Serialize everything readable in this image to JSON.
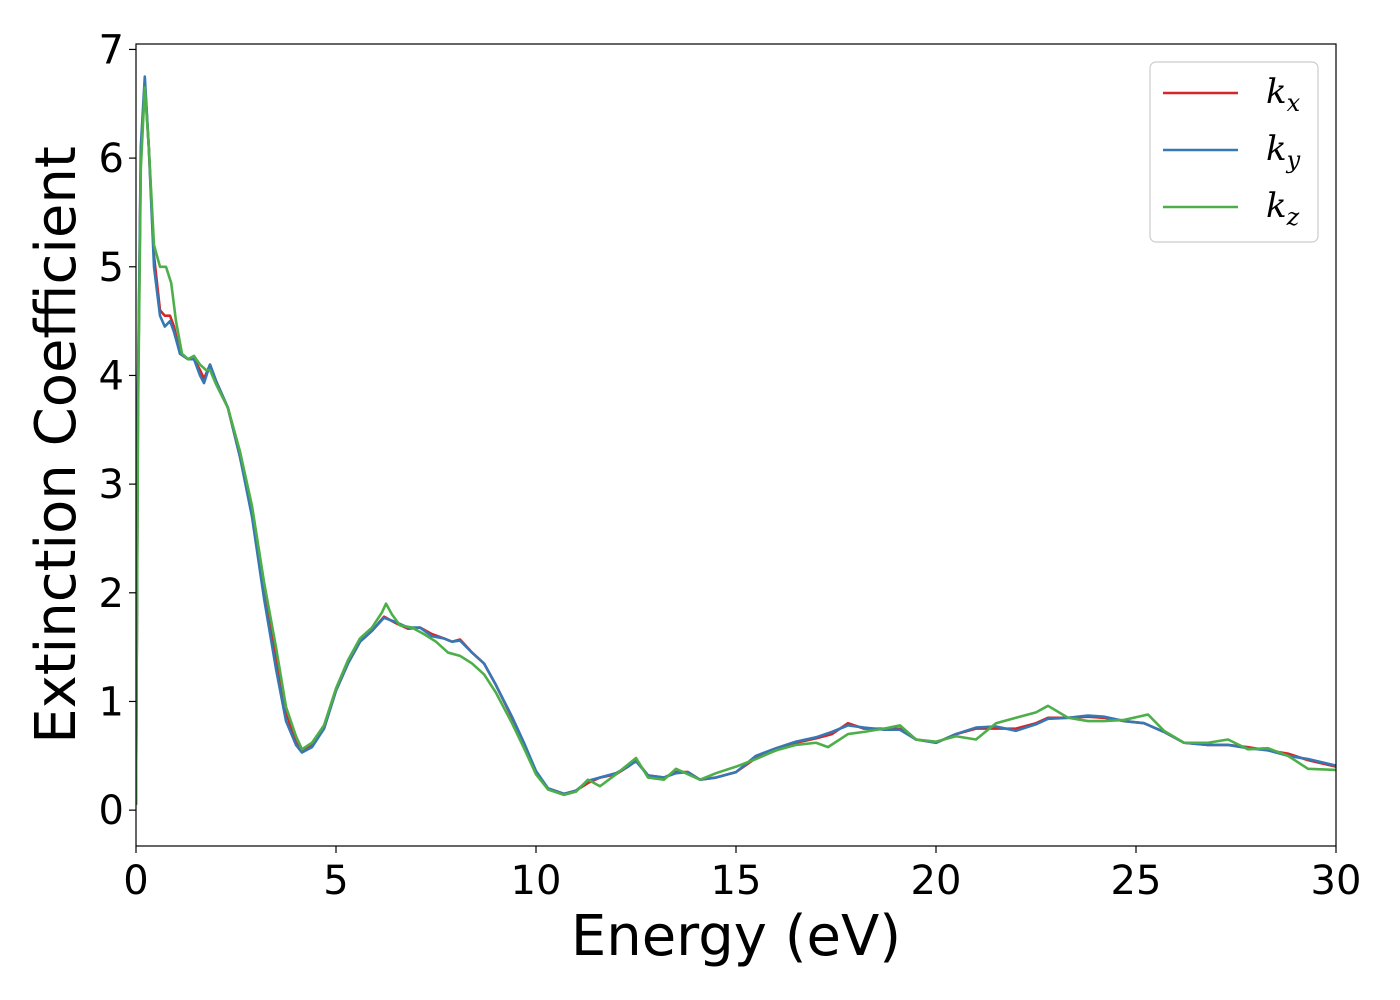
{
  "chart_data": {
    "type": "line",
    "xlabel": "Energy (eV)",
    "ylabel": "Extinction Coefficient",
    "xlim": [
      0,
      30
    ],
    "ylim": [
      -0.33,
      7.05
    ],
    "xticks": [
      0,
      5,
      10,
      15,
      20,
      25,
      30
    ],
    "yticks": [
      0,
      1,
      2,
      3,
      4,
      5,
      6,
      7
    ],
    "grid": false,
    "legend_position": "top-right",
    "series": [
      {
        "name": "k_x",
        "label_main": "k",
        "label_sub": "x",
        "color": "#d62728",
        "points": [
          [
            0,
            0.05
          ],
          [
            0.05,
            3.8
          ],
          [
            0.12,
            6.0
          ],
          [
            0.22,
            6.7
          ],
          [
            0.32,
            6.1
          ],
          [
            0.45,
            5.1
          ],
          [
            0.6,
            4.6
          ],
          [
            0.72,
            4.55
          ],
          [
            0.85,
            4.55
          ],
          [
            0.95,
            4.45
          ],
          [
            1.1,
            4.2
          ],
          [
            1.3,
            4.15
          ],
          [
            1.45,
            4.15
          ],
          [
            1.6,
            4.05
          ],
          [
            1.7,
            3.97
          ],
          [
            1.85,
            4.1
          ],
          [
            2.0,
            3.95
          ],
          [
            2.3,
            3.7
          ],
          [
            2.6,
            3.25
          ],
          [
            2.9,
            2.75
          ],
          [
            3.2,
            2.05
          ],
          [
            3.5,
            1.4
          ],
          [
            3.75,
            0.9
          ],
          [
            4.0,
            0.62
          ],
          [
            4.15,
            0.55
          ],
          [
            4.4,
            0.6
          ],
          [
            4.7,
            0.75
          ],
          [
            5.0,
            1.1
          ],
          [
            5.3,
            1.35
          ],
          [
            5.6,
            1.55
          ],
          [
            5.9,
            1.65
          ],
          [
            6.2,
            1.78
          ],
          [
            6.5,
            1.72
          ],
          [
            6.8,
            1.67
          ],
          [
            7.1,
            1.68
          ],
          [
            7.4,
            1.62
          ],
          [
            7.7,
            1.58
          ],
          [
            7.9,
            1.55
          ],
          [
            8.1,
            1.57
          ],
          [
            8.4,
            1.45
          ],
          [
            8.7,
            1.35
          ],
          [
            9.0,
            1.15
          ],
          [
            9.4,
            0.85
          ],
          [
            9.7,
            0.6
          ],
          [
            10.0,
            0.35
          ],
          [
            10.3,
            0.2
          ],
          [
            10.7,
            0.15
          ],
          [
            11.0,
            0.18
          ],
          [
            11.3,
            0.25
          ],
          [
            11.6,
            0.3
          ],
          [
            12.0,
            0.33
          ],
          [
            12.3,
            0.4
          ],
          [
            12.5,
            0.46
          ],
          [
            12.8,
            0.32
          ],
          [
            13.2,
            0.3
          ],
          [
            13.5,
            0.35
          ],
          [
            13.8,
            0.35
          ],
          [
            14.1,
            0.28
          ],
          [
            14.5,
            0.3
          ],
          [
            15.0,
            0.35
          ],
          [
            15.5,
            0.48
          ],
          [
            16.0,
            0.55
          ],
          [
            16.5,
            0.62
          ],
          [
            17.0,
            0.66
          ],
          [
            17.4,
            0.7
          ],
          [
            17.8,
            0.8
          ],
          [
            18.2,
            0.75
          ],
          [
            18.7,
            0.75
          ],
          [
            19.1,
            0.75
          ],
          [
            19.5,
            0.65
          ],
          [
            20.0,
            0.62
          ],
          [
            20.5,
            0.7
          ],
          [
            21.0,
            0.75
          ],
          [
            21.5,
            0.75
          ],
          [
            22.0,
            0.75
          ],
          [
            22.5,
            0.8
          ],
          [
            22.8,
            0.85
          ],
          [
            23.3,
            0.85
          ],
          [
            23.8,
            0.86
          ],
          [
            24.2,
            0.85
          ],
          [
            24.7,
            0.82
          ],
          [
            25.2,
            0.8
          ],
          [
            25.7,
            0.72
          ],
          [
            26.2,
            0.62
          ],
          [
            26.8,
            0.6
          ],
          [
            27.3,
            0.6
          ],
          [
            27.8,
            0.58
          ],
          [
            28.3,
            0.55
          ],
          [
            28.8,
            0.52
          ],
          [
            29.3,
            0.46
          ],
          [
            30.0,
            0.4
          ]
        ]
      },
      {
        "name": "k_y",
        "label_main": "k",
        "label_sub": "y",
        "color": "#3778b4",
        "points": [
          [
            0,
            0.05
          ],
          [
            0.05,
            3.9
          ],
          [
            0.12,
            6.1
          ],
          [
            0.22,
            6.75
          ],
          [
            0.32,
            6.1
          ],
          [
            0.45,
            5.0
          ],
          [
            0.6,
            4.55
          ],
          [
            0.72,
            4.45
          ],
          [
            0.85,
            4.5
          ],
          [
            0.95,
            4.4
          ],
          [
            1.1,
            4.2
          ],
          [
            1.3,
            4.15
          ],
          [
            1.45,
            4.15
          ],
          [
            1.6,
            4.0
          ],
          [
            1.7,
            3.93
          ],
          [
            1.85,
            4.1
          ],
          [
            2.0,
            3.95
          ],
          [
            2.3,
            3.7
          ],
          [
            2.6,
            3.25
          ],
          [
            2.9,
            2.7
          ],
          [
            3.2,
            1.95
          ],
          [
            3.5,
            1.3
          ],
          [
            3.75,
            0.82
          ],
          [
            4.0,
            0.6
          ],
          [
            4.15,
            0.53
          ],
          [
            4.4,
            0.58
          ],
          [
            4.7,
            0.75
          ],
          [
            5.0,
            1.1
          ],
          [
            5.3,
            1.35
          ],
          [
            5.6,
            1.55
          ],
          [
            5.9,
            1.65
          ],
          [
            6.2,
            1.77
          ],
          [
            6.5,
            1.73
          ],
          [
            6.8,
            1.68
          ],
          [
            7.1,
            1.68
          ],
          [
            7.4,
            1.6
          ],
          [
            7.7,
            1.58
          ],
          [
            7.9,
            1.55
          ],
          [
            8.1,
            1.56
          ],
          [
            8.4,
            1.45
          ],
          [
            8.7,
            1.35
          ],
          [
            9.0,
            1.15
          ],
          [
            9.4,
            0.86
          ],
          [
            9.7,
            0.62
          ],
          [
            10.0,
            0.36
          ],
          [
            10.3,
            0.2
          ],
          [
            10.7,
            0.15
          ],
          [
            11.0,
            0.18
          ],
          [
            11.3,
            0.27
          ],
          [
            11.6,
            0.3
          ],
          [
            12.0,
            0.34
          ],
          [
            12.3,
            0.4
          ],
          [
            12.5,
            0.45
          ],
          [
            12.8,
            0.32
          ],
          [
            13.2,
            0.3
          ],
          [
            13.5,
            0.34
          ],
          [
            13.8,
            0.35
          ],
          [
            14.1,
            0.28
          ],
          [
            14.5,
            0.3
          ],
          [
            15.0,
            0.35
          ],
          [
            15.5,
            0.5
          ],
          [
            16.0,
            0.57
          ],
          [
            16.5,
            0.63
          ],
          [
            17.0,
            0.67
          ],
          [
            17.4,
            0.72
          ],
          [
            17.8,
            0.78
          ],
          [
            18.2,
            0.76
          ],
          [
            18.7,
            0.74
          ],
          [
            19.1,
            0.74
          ],
          [
            19.5,
            0.65
          ],
          [
            20.0,
            0.62
          ],
          [
            20.5,
            0.7
          ],
          [
            21.0,
            0.76
          ],
          [
            21.5,
            0.77
          ],
          [
            22.0,
            0.73
          ],
          [
            22.5,
            0.79
          ],
          [
            22.8,
            0.84
          ],
          [
            23.3,
            0.85
          ],
          [
            23.8,
            0.87
          ],
          [
            24.2,
            0.86
          ],
          [
            24.7,
            0.82
          ],
          [
            25.2,
            0.8
          ],
          [
            25.7,
            0.72
          ],
          [
            26.2,
            0.62
          ],
          [
            26.8,
            0.6
          ],
          [
            27.3,
            0.6
          ],
          [
            27.8,
            0.57
          ],
          [
            28.3,
            0.55
          ],
          [
            28.8,
            0.5
          ],
          [
            29.3,
            0.47
          ],
          [
            30.0,
            0.41
          ]
        ]
      },
      {
        "name": "k_z",
        "label_main": "k",
        "label_sub": "z",
        "color": "#4daf4a",
        "points": [
          [
            0,
            0.05
          ],
          [
            0.05,
            3.6
          ],
          [
            0.12,
            5.9
          ],
          [
            0.22,
            6.65
          ],
          [
            0.32,
            6.1
          ],
          [
            0.45,
            5.2
          ],
          [
            0.6,
            5.0
          ],
          [
            0.75,
            5.0
          ],
          [
            0.88,
            4.85
          ],
          [
            1.0,
            4.5
          ],
          [
            1.15,
            4.2
          ],
          [
            1.3,
            4.15
          ],
          [
            1.45,
            4.18
          ],
          [
            1.6,
            4.1
          ],
          [
            1.75,
            4.05
          ],
          [
            1.85,
            4.05
          ],
          [
            2.0,
            3.92
          ],
          [
            2.3,
            3.7
          ],
          [
            2.6,
            3.3
          ],
          [
            2.9,
            2.8
          ],
          [
            3.2,
            2.1
          ],
          [
            3.5,
            1.5
          ],
          [
            3.75,
            0.95
          ],
          [
            4.0,
            0.68
          ],
          [
            4.15,
            0.56
          ],
          [
            4.4,
            0.62
          ],
          [
            4.7,
            0.78
          ],
          [
            5.0,
            1.12
          ],
          [
            5.3,
            1.38
          ],
          [
            5.6,
            1.58
          ],
          [
            5.9,
            1.68
          ],
          [
            6.15,
            1.82
          ],
          [
            6.25,
            1.9
          ],
          [
            6.4,
            1.8
          ],
          [
            6.6,
            1.7
          ],
          [
            6.9,
            1.68
          ],
          [
            7.2,
            1.62
          ],
          [
            7.5,
            1.55
          ],
          [
            7.8,
            1.45
          ],
          [
            8.1,
            1.42
          ],
          [
            8.4,
            1.35
          ],
          [
            8.7,
            1.25
          ],
          [
            9.0,
            1.08
          ],
          [
            9.4,
            0.8
          ],
          [
            9.7,
            0.57
          ],
          [
            10.0,
            0.33
          ],
          [
            10.3,
            0.19
          ],
          [
            10.7,
            0.14
          ],
          [
            11.0,
            0.17
          ],
          [
            11.3,
            0.28
          ],
          [
            11.6,
            0.22
          ],
          [
            12.0,
            0.33
          ],
          [
            12.3,
            0.42
          ],
          [
            12.5,
            0.48
          ],
          [
            12.8,
            0.3
          ],
          [
            13.2,
            0.28
          ],
          [
            13.5,
            0.38
          ],
          [
            13.8,
            0.33
          ],
          [
            14.1,
            0.28
          ],
          [
            14.5,
            0.34
          ],
          [
            15.0,
            0.4
          ],
          [
            15.5,
            0.47
          ],
          [
            16.0,
            0.55
          ],
          [
            16.5,
            0.6
          ],
          [
            17.0,
            0.62
          ],
          [
            17.3,
            0.58
          ],
          [
            17.8,
            0.7
          ],
          [
            18.2,
            0.72
          ],
          [
            18.7,
            0.75
          ],
          [
            19.1,
            0.78
          ],
          [
            19.5,
            0.65
          ],
          [
            20.0,
            0.63
          ],
          [
            20.5,
            0.68
          ],
          [
            21.0,
            0.65
          ],
          [
            21.5,
            0.8
          ],
          [
            22.0,
            0.85
          ],
          [
            22.5,
            0.9
          ],
          [
            22.8,
            0.96
          ],
          [
            23.3,
            0.85
          ],
          [
            23.8,
            0.82
          ],
          [
            24.2,
            0.82
          ],
          [
            24.7,
            0.83
          ],
          [
            25.3,
            0.88
          ],
          [
            25.7,
            0.73
          ],
          [
            26.2,
            0.62
          ],
          [
            26.8,
            0.62
          ],
          [
            27.3,
            0.65
          ],
          [
            27.8,
            0.56
          ],
          [
            28.3,
            0.57
          ],
          [
            28.8,
            0.5
          ],
          [
            29.3,
            0.38
          ],
          [
            30.0,
            0.37
          ]
        ]
      }
    ]
  }
}
